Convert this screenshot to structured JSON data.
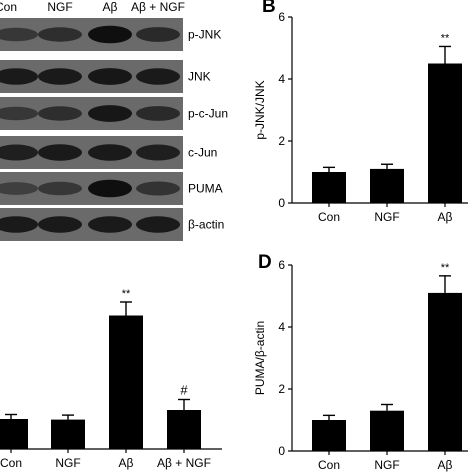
{
  "figure": {
    "blot": {
      "lanes": [
        "Con",
        "NGF",
        "Aβ",
        "Aβ + NGF"
      ],
      "bands": [
        {
          "label": "p-JNK",
          "intensity": [
            0.45,
            0.55,
            0.95,
            0.6
          ]
        },
        {
          "label": "JNK",
          "intensity": [
            0.8,
            0.8,
            0.85,
            0.8
          ]
        },
        {
          "label": "p-c-Jun",
          "intensity": [
            0.45,
            0.55,
            0.85,
            0.6
          ]
        },
        {
          "label": "c-Jun",
          "intensity": [
            0.75,
            0.8,
            0.8,
            0.75
          ]
        },
        {
          "label": "PUMA",
          "intensity": [
            0.35,
            0.45,
            0.95,
            0.5
          ]
        },
        {
          "label": "β-actin",
          "intensity": [
            0.8,
            0.8,
            0.8,
            0.8
          ]
        }
      ]
    },
    "panels": {
      "B": {
        "letter": "B"
      },
      "D": {
        "letter": "D"
      }
    }
  },
  "chart_data": [
    {
      "id": "C",
      "type": "bar",
      "categories": [
        "Con",
        "NGF",
        "Aβ",
        "Aβ + NGF"
      ],
      "values": [
        1.0,
        0.98,
        4.45,
        1.3
      ],
      "errors": [
        0.15,
        0.15,
        0.45,
        0.35
      ],
      "annotations": [
        "",
        "",
        "**",
        "#"
      ],
      "ylim": [
        0,
        6
      ],
      "ylabel": "",
      "color": "#000000"
    },
    {
      "id": "B",
      "type": "bar",
      "categories": [
        "Con",
        "NGF",
        "Aβ"
      ],
      "values": [
        1.0,
        1.1,
        4.5
      ],
      "errors": [
        0.15,
        0.15,
        0.55
      ],
      "annotations": [
        "",
        "",
        "**"
      ],
      "ylim": [
        0,
        6
      ],
      "yticks": [
        0,
        2,
        4,
        6
      ],
      "ylabel": "p-JNK/JNK",
      "color": "#000000"
    },
    {
      "id": "D",
      "type": "bar",
      "categories": [
        "Con",
        "NGF",
        "Aβ"
      ],
      "values": [
        1.0,
        1.3,
        5.1
      ],
      "errors": [
        0.15,
        0.2,
        0.55
      ],
      "annotations": [
        "",
        "",
        "**"
      ],
      "ylim": [
        0,
        6
      ],
      "yticks": [
        0,
        2,
        4,
        6
      ],
      "ylabel": "PUMA/β-actin",
      "color": "#000000"
    }
  ]
}
